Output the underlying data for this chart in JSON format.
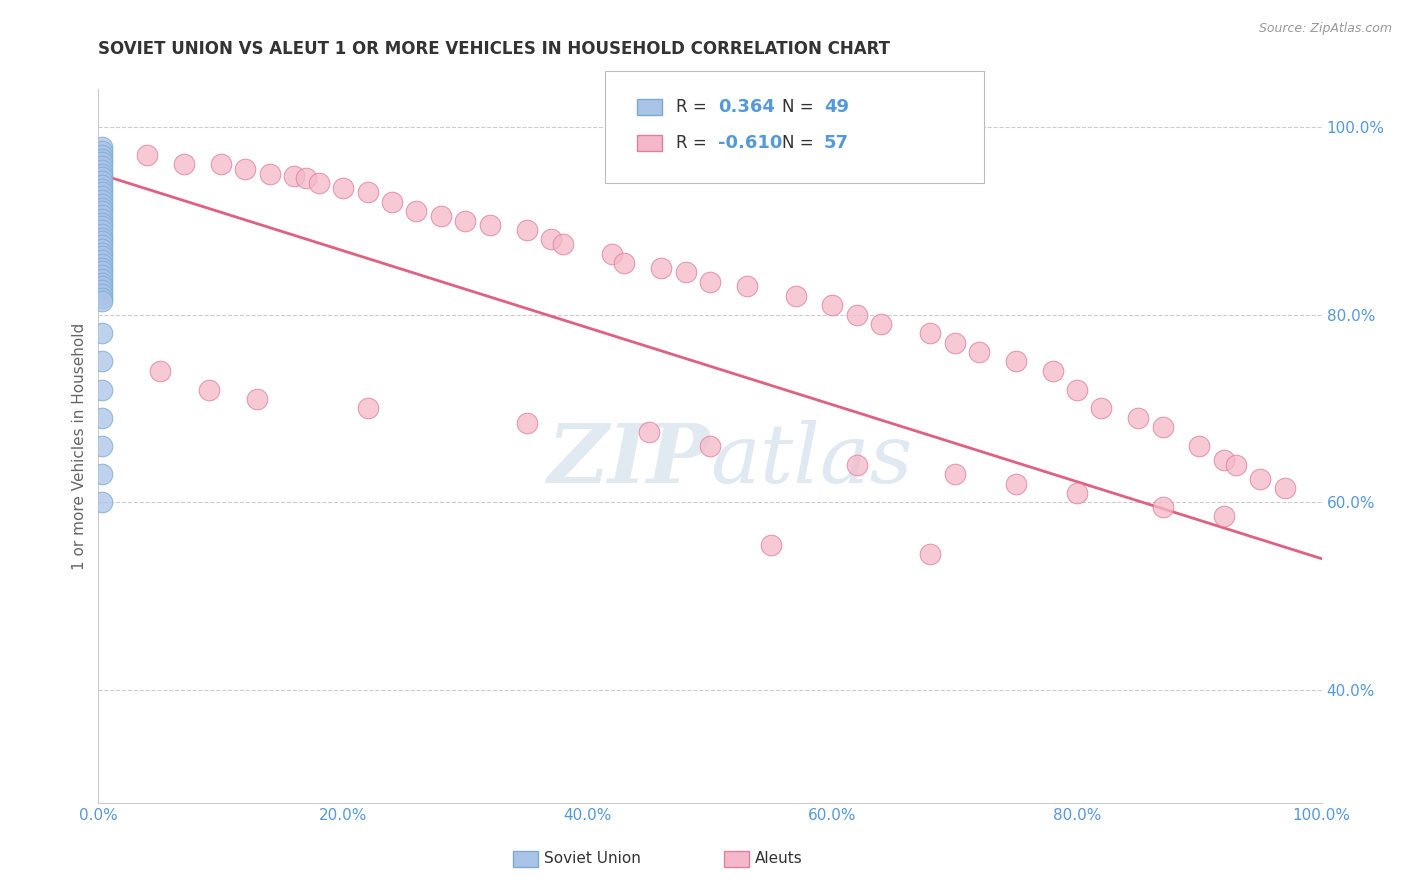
{
  "title": "SOVIET UNION VS ALEUT 1 OR MORE VEHICLES IN HOUSEHOLD CORRELATION CHART",
  "ylabel": "1 or more Vehicles in Household",
  "source_text": "Source: ZipAtlas.com",
  "legend_soviet": "Soviet Union",
  "legend_aleut": "Aleuts",
  "r_soviet": "0.364",
  "n_soviet": "49",
  "r_aleut": "-0.610",
  "n_aleut": "57",
  "background_color": "#ffffff",
  "grid_color": "#cccccc",
  "watermark_zip": "ZIP",
  "watermark_atlas": "atlas",
  "soviet_color": "#aac4e8",
  "aleut_color": "#f5b8c8",
  "soviet_edge_color": "#7aaad0",
  "aleut_edge_color": "#e080a0",
  "aleut_line_color": "#e06080",
  "tick_color": "#5599dd",
  "title_color": "#333333",
  "ylabel_color": "#666666",
  "aleut_x": [
    0.04,
    0.07,
    0.1,
    0.12,
    0.14,
    0.16,
    0.17,
    0.18,
    0.2,
    0.22,
    0.24,
    0.26,
    0.28,
    0.3,
    0.32,
    0.35,
    0.37,
    0.38,
    0.42,
    0.43,
    0.46,
    0.48,
    0.5,
    0.53,
    0.57,
    0.6,
    0.62,
    0.64,
    0.68,
    0.7,
    0.72,
    0.75,
    0.78,
    0.8,
    0.82,
    0.85,
    0.87,
    0.9,
    0.92,
    0.93,
    0.95,
    0.97,
    0.05,
    0.09,
    0.13,
    0.22,
    0.35,
    0.45,
    0.5,
    0.62,
    0.7,
    0.75,
    0.8,
    0.87,
    0.92,
    0.55,
    0.68
  ],
  "aleut_y": [
    0.97,
    0.96,
    0.96,
    0.955,
    0.95,
    0.948,
    0.945,
    0.94,
    0.935,
    0.93,
    0.92,
    0.91,
    0.905,
    0.9,
    0.895,
    0.89,
    0.88,
    0.875,
    0.865,
    0.855,
    0.85,
    0.845,
    0.835,
    0.83,
    0.82,
    0.81,
    0.8,
    0.79,
    0.78,
    0.77,
    0.76,
    0.75,
    0.74,
    0.72,
    0.7,
    0.69,
    0.68,
    0.66,
    0.645,
    0.64,
    0.625,
    0.615,
    0.74,
    0.72,
    0.71,
    0.7,
    0.685,
    0.675,
    0.66,
    0.64,
    0.63,
    0.62,
    0.61,
    0.595,
    0.585,
    0.555,
    0.545
  ],
  "soviet_x": [
    0.003,
    0.003,
    0.003,
    0.003,
    0.003,
    0.003,
    0.003,
    0.003,
    0.003,
    0.003,
    0.003,
    0.003,
    0.003,
    0.003,
    0.003,
    0.003,
    0.003,
    0.003,
    0.003,
    0.003,
    0.003,
    0.003,
    0.003,
    0.003,
    0.003,
    0.003,
    0.003,
    0.003,
    0.003,
    0.003,
    0.003,
    0.003,
    0.003,
    0.003,
    0.003,
    0.003,
    0.003,
    0.003,
    0.003,
    0.003,
    0.003,
    0.003,
    0.003,
    0.003,
    0.003,
    0.003,
    0.003,
    0.003,
    0.003
  ],
  "soviet_y": [
    0.978,
    0.974,
    0.97,
    0.966,
    0.962,
    0.958,
    0.954,
    0.95,
    0.946,
    0.942,
    0.938,
    0.934,
    0.93,
    0.926,
    0.922,
    0.918,
    0.914,
    0.91,
    0.906,
    0.902,
    0.898,
    0.894,
    0.89,
    0.886,
    0.882,
    0.878,
    0.874,
    0.87,
    0.866,
    0.862,
    0.858,
    0.854,
    0.85,
    0.846,
    0.842,
    0.838,
    0.834,
    0.83,
    0.826,
    0.822,
    0.818,
    0.814,
    0.78,
    0.75,
    0.72,
    0.69,
    0.66,
    0.63,
    0.6
  ],
  "aleut_line_x0": 0.0,
  "aleut_line_y0": 0.95,
  "aleut_line_x1": 1.0,
  "aleut_line_y1": 0.54,
  "xlim": [
    0.0,
    1.0
  ],
  "ylim": [
    0.28,
    1.04
  ],
  "xticks": [
    0.0,
    0.2,
    0.4,
    0.6,
    0.8,
    1.0
  ],
  "yticks": [
    0.4,
    0.6,
    0.8,
    1.0
  ],
  "xtick_labels": [
    "0.0%",
    "20.0%",
    "40.0%",
    "60.0%",
    "80.0%",
    "100.0%"
  ],
  "ytick_labels": [
    "40.0%",
    "60.0%",
    "80.0%",
    "100.0%"
  ]
}
